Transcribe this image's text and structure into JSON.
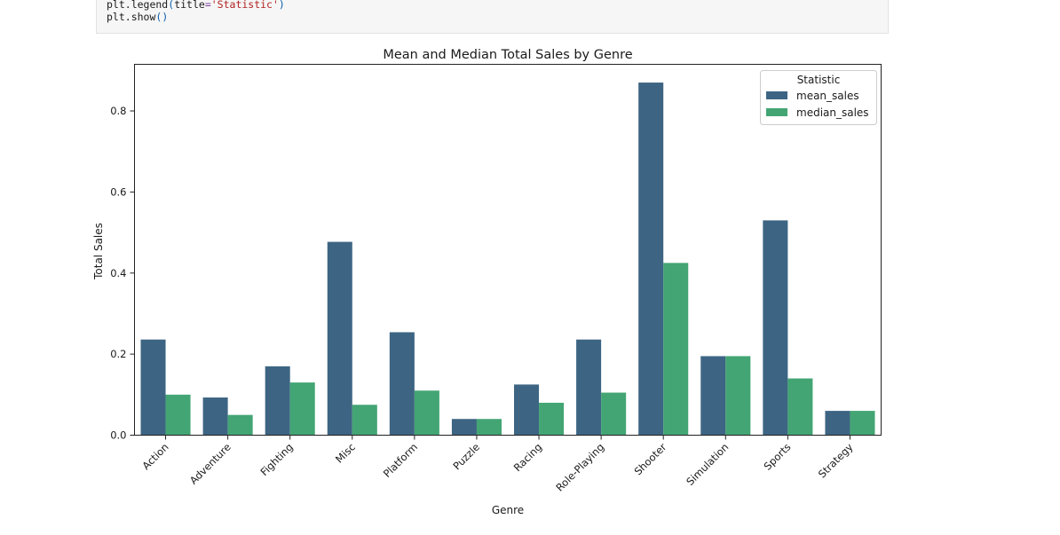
{
  "code": {
    "line1": {
      "fn": "plt.legend",
      "open": "(",
      "kw": "title",
      "eq": "=",
      "str": "'Statistic'",
      "close": ")"
    },
    "line2": {
      "fn": "plt.show",
      "parens": "()"
    }
  },
  "chart_data": {
    "type": "bar",
    "title": "Mean and Median Total Sales by Genre",
    "xlabel": "Genre",
    "ylabel": "Total Sales",
    "ylim": [
      0,
      0.915
    ],
    "yticks": [
      "0.0",
      "0.2",
      "0.4",
      "0.6",
      "0.8"
    ],
    "ytick_values": [
      0,
      0.2,
      0.4,
      0.6,
      0.8
    ],
    "categories": [
      "Action",
      "Adventure",
      "Fighting",
      "Misc",
      "Platform",
      "Puzzle",
      "Racing",
      "Role-Playing",
      "Shooter",
      "Simulation",
      "Sports",
      "Strategy"
    ],
    "series": [
      {
        "name": "mean_sales",
        "color": "#3d6583",
        "values": [
          0.236,
          0.093,
          0.17,
          0.477,
          0.254,
          0.04,
          0.125,
          0.236,
          0.87,
          0.195,
          0.53,
          0.06
        ]
      },
      {
        "name": "median_sales",
        "color": "#43a574",
        "values": [
          0.1,
          0.05,
          0.13,
          0.075,
          0.11,
          0.04,
          0.08,
          0.105,
          0.425,
          0.195,
          0.14,
          0.06
        ]
      }
    ],
    "legend": {
      "title": "Statistic",
      "placement": "top-right"
    },
    "grid": false
  }
}
